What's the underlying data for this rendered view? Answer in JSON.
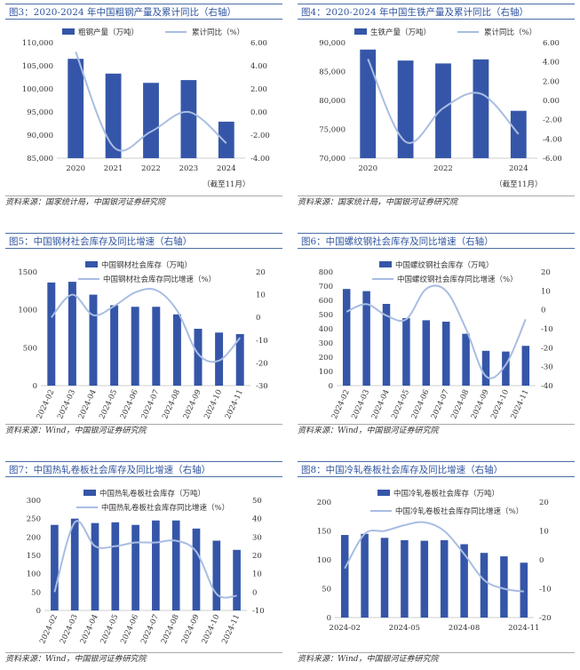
{
  "colors": {
    "bar": "#3556a8",
    "line": "#a9bde2",
    "title_text": "#2f55a0",
    "border": "#4a6fa5"
  },
  "panels": [
    {
      "title": "图3：2020-2024 年中国粗钢产量及累计同比（右轴）",
      "source": "资料来源：国家统计局，中国银河证券研究院"
    },
    {
      "title": "图4：2020-2024 年中国生铁产量及累计同比（右轴）",
      "source": "资料来源：国家统计局，中国银河证券研究院"
    },
    {
      "title": "图5：中国钢材社会库存及同比增速（右轴）",
      "source": "资料来源：Wind，中国银河证券研究院"
    },
    {
      "title": "图6：中国螺纹钢社会库存及同比增速（右轴）",
      "source": "资料来源：Wind，中国银河证券研究院"
    },
    {
      "title": "图7：中国热轧卷板社会库存及同比增速（右轴）",
      "source": "资料来源：Wind，中国银河证券研究院"
    },
    {
      "title": "图8：中国冷轧卷板社会库存及同比增速（右轴）",
      "source": "资料来源：Wind，中国银河证券研究院"
    }
  ],
  "chart_data": [
    {
      "type": "bar+line",
      "title": "图3：2020-2024 年中国粗钢产量及累计同比（右轴）",
      "categories": [
        "2020",
        "2021",
        "2022",
        "2023",
        "2024"
      ],
      "xtick_labels": [
        "2020",
        "2021",
        "2022",
        "2023",
        "2024"
      ],
      "xlabels_rotated": false,
      "series": [
        {
          "name": "粗钢产量（万吨）",
          "kind": "bar",
          "axis": "left",
          "values": [
            106500,
            103300,
            101300,
            101900,
            92900
          ]
        },
        {
          "name": "累计同比（%）",
          "kind": "line",
          "axis": "right",
          "values": [
            5.2,
            -3.0,
            -1.7,
            0.0,
            -2.7
          ]
        }
      ],
      "ylim_left": [
        85000,
        110000
      ],
      "yticks_left": [
        85000,
        90000,
        95000,
        100000,
        105000,
        110000
      ],
      "ytick_labels_left": [
        "85,000",
        "90,000",
        "95,000",
        "100,000",
        "105,000",
        "110,000"
      ],
      "ylim_right": [
        -4,
        6
      ],
      "yticks_right": [
        -4,
        -2,
        0,
        2,
        4,
        6
      ],
      "ytick_labels_right": [
        "-4.00",
        "-2.00",
        "0.00",
        "2.00",
        "4.00",
        "6.00"
      ],
      "legend_position": "top",
      "legend_layout": "row",
      "note": "（截至11月）"
    },
    {
      "type": "bar+line",
      "title": "图4：2020-2024 年中国生铁产量及累计同比（右轴）",
      "categories": [
        "2020",
        "2021",
        "2022",
        "2023",
        "2024"
      ],
      "xtick_labels": [
        "2020",
        "",
        "2022",
        "",
        "2024"
      ],
      "xlabels_rotated": false,
      "series": [
        {
          "name": "生铁产量（万吨）",
          "kind": "bar",
          "axis": "left",
          "values": [
            88800,
            86900,
            86400,
            87100,
            78200
          ]
        },
        {
          "name": "累计同比（%）",
          "kind": "line",
          "axis": "right",
          "values": [
            4.3,
            -4.3,
            -0.8,
            0.7,
            -3.5
          ]
        }
      ],
      "ylim_left": [
        70000,
        90000
      ],
      "yticks_left": [
        70000,
        75000,
        80000,
        85000,
        90000
      ],
      "ytick_labels_left": [
        "70,000",
        "75,000",
        "80,000",
        "85,000",
        "90,000"
      ],
      "ylim_right": [
        -6,
        6
      ],
      "yticks_right": [
        -6,
        -4,
        -2,
        0,
        2,
        4,
        6
      ],
      "ytick_labels_right": [
        "-6.00",
        "-4.00",
        "-2.00",
        "0.00",
        "2.00",
        "4.00",
        "6.00"
      ],
      "legend_position": "top",
      "legend_layout": "row",
      "note": "（截至11月）"
    },
    {
      "type": "bar+line",
      "title": "图5：中国钢材社会库存及同比增速（右轴）",
      "categories": [
        "2024-02",
        "2024-03",
        "2024-04",
        "2024-05",
        "2024-06",
        "2024-07",
        "2024-08",
        "2024-09",
        "2024-10",
        "2024-11"
      ],
      "xtick_labels": [
        "2024-02",
        "2024-03",
        "2024-04",
        "2024-05",
        "2024-06",
        "2024-07",
        "2024-08",
        "2024-09",
        "2024-10",
        "2024-11"
      ],
      "xlabels_rotated": true,
      "series": [
        {
          "name": "中国钢材社会库存（万吨）",
          "kind": "bar",
          "axis": "left",
          "values": [
            1360,
            1370,
            1200,
            1060,
            1040,
            1040,
            940,
            750,
            700,
            680
          ]
        },
        {
          "name": "中国钢材社会库存同比增速（%）",
          "kind": "line",
          "axis": "right",
          "values": [
            0,
            10,
            1,
            5,
            11,
            12,
            3,
            -16,
            -19,
            -9
          ]
        }
      ],
      "ylim_left": [
        0,
        1500
      ],
      "yticks_left": [
        0,
        500,
        1000,
        1500
      ],
      "ytick_labels_left": [
        "0",
        "500",
        "1000",
        "1500"
      ],
      "ylim_right": [
        -30,
        20
      ],
      "yticks_right": [
        -30,
        -20,
        -10,
        0,
        10,
        20
      ],
      "ytick_labels_right": [
        "-30",
        "-20",
        "-10",
        "0",
        "10",
        "20"
      ],
      "legend_position": "top",
      "legend_layout": "stacked"
    },
    {
      "type": "bar+line",
      "title": "图6：中国螺纹钢社会库存及同比增速（右轴）",
      "categories": [
        "2024-02",
        "2024-03",
        "2024-04",
        "2024-05",
        "2024-06",
        "2024-07",
        "2024-08",
        "2024-09",
        "2024-10",
        "2024-11"
      ],
      "xtick_labels": [
        "2024-02",
        "2024-03",
        "2024-04",
        "2024-05",
        "2024-06",
        "2024-07",
        "2024-08",
        "2024-09",
        "2024-10",
        "2024-11"
      ],
      "xlabels_rotated": true,
      "series": [
        {
          "name": "中国螺纹钢社会库存（万吨）",
          "kind": "bar",
          "axis": "left",
          "values": [
            680,
            665,
            575,
            475,
            460,
            450,
            365,
            245,
            240,
            280
          ]
        },
        {
          "name": "中国螺纹钢社会库存同比增速（%）",
          "kind": "line",
          "axis": "right",
          "values": [
            -1,
            3,
            -3,
            -5,
            11,
            10,
            -10,
            -35,
            -29,
            -5
          ]
        }
      ],
      "ylim_left": [
        0,
        800
      ],
      "yticks_left": [
        0,
        100,
        200,
        300,
        400,
        500,
        600,
        700,
        800
      ],
      "ytick_labels_left": [
        "0",
        "100",
        "200",
        "300",
        "400",
        "500",
        "600",
        "700",
        "800"
      ],
      "ylim_right": [
        -40,
        20
      ],
      "yticks_right": [
        -40,
        -30,
        -20,
        -10,
        0,
        10,
        20
      ],
      "ytick_labels_right": [
        "-40",
        "-30",
        "-20",
        "-10",
        "0",
        "10",
        "20"
      ],
      "legend_position": "top",
      "legend_layout": "stacked"
    },
    {
      "type": "bar+line",
      "title": "图7：中国热轧卷板社会库存及同比增速（右轴）",
      "categories": [
        "2024-02",
        "2024-03",
        "2024-04",
        "2024-05",
        "2024-06",
        "2024-07",
        "2024-08",
        "2024-09",
        "2024-10",
        "2024-11"
      ],
      "xtick_labels": [
        "2024-02",
        "2024-03",
        "2024-04",
        "2024-05",
        "2024-06",
        "2024-07",
        "2024-08",
        "2024-09",
        "2024-10",
        "2024-11"
      ],
      "xlabels_rotated": true,
      "series": [
        {
          "name": "中国热轧卷板社会库存（万吨）",
          "kind": "bar",
          "axis": "left",
          "values": [
            233,
            250,
            238,
            240,
            233,
            245,
            245,
            223,
            190,
            165
          ]
        },
        {
          "name": "中国热轧卷板社会库存同比增速（%）",
          "kind": "line",
          "axis": "right",
          "values": [
            0,
            38,
            25,
            25,
            27,
            27,
            28,
            22,
            -1,
            -2
          ]
        }
      ],
      "ylim_left": [
        0,
        300
      ],
      "yticks_left": [
        0,
        50,
        100,
        150,
        200,
        250,
        300
      ],
      "ytick_labels_left": [
        "0",
        "50",
        "100",
        "150",
        "200",
        "250",
        "300"
      ],
      "ylim_right": [
        -10,
        50
      ],
      "yticks_right": [
        -10,
        0,
        10,
        20,
        30,
        40,
        50
      ],
      "ytick_labels_right": [
        "-10",
        "0",
        "10",
        "20",
        "30",
        "40",
        "50"
      ],
      "legend_position": "top",
      "legend_layout": "stacked"
    },
    {
      "type": "bar+line",
      "title": "图8：中国冷轧卷板社会库存及同比增速（右轴）",
      "categories": [
        "2024-02",
        "2024-03",
        "2024-04",
        "2024-05",
        "2024-06",
        "2024-07",
        "2024-08",
        "2024-09",
        "2024-10",
        "2024-11"
      ],
      "xtick_labels": [
        "2024-02",
        "",
        "",
        "2024-05",
        "",
        "",
        "2024-08",
        "",
        "",
        "2024-11"
      ],
      "xlabels_rotated": false,
      "series": [
        {
          "name": "中国冷轧卷板社会库存（万吨）",
          "kind": "bar",
          "axis": "left",
          "values": [
            143,
            145,
            138,
            134,
            133,
            134,
            127,
            112,
            106,
            95
          ]
        },
        {
          "name": "中国冷轧卷板社会库存同比增速（%）",
          "kind": "line",
          "axis": "right",
          "values": [
            -3,
            9,
            10,
            12,
            13,
            10,
            2,
            -7,
            -10,
            -11
          ]
        }
      ],
      "ylim_left": [
        0,
        200
      ],
      "yticks_left": [
        0,
        50,
        100,
        150,
        200
      ],
      "ytick_labels_left": [
        "0",
        "50",
        "100",
        "150",
        "200"
      ],
      "ylim_right": [
        -20,
        20
      ],
      "yticks_right": [
        -20,
        -10,
        0,
        10,
        20
      ],
      "ytick_labels_right": [
        "-20",
        "-10",
        "0",
        "10",
        "20"
      ],
      "legend_position": "top",
      "legend_layout": "stacked"
    }
  ]
}
